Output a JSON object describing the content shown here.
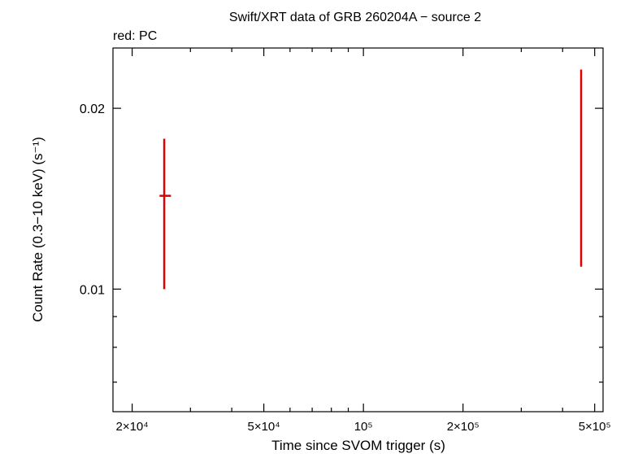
{
  "chart_data": {
    "type": "scatter",
    "title": "Swift/XRT data of GRB 260204A − source 2",
    "subtitle": "red: PC",
    "xlabel": "Time since SVOM trigger (s)",
    "ylabel": "Count Rate (0.3−10 keV) (s⁻¹)",
    "xscale": "log",
    "yscale": "log",
    "xlim": [
      17500,
      530000
    ],
    "ylim": [
      0.00625,
      0.0252
    ],
    "x_ticks": [
      {
        "value": 20000,
        "label": "2×10⁴"
      },
      {
        "value": 50000,
        "label": "5×10⁴"
      },
      {
        "value": 100000,
        "label": "10⁵"
      },
      {
        "value": 200000,
        "label": "2×10⁵"
      },
      {
        "value": 500000,
        "label": "5×10⁵"
      }
    ],
    "y_ticks": [
      {
        "value": 0.01,
        "label": "0.01"
      },
      {
        "value": 0.02,
        "label": "0.02"
      }
    ],
    "grid": false,
    "series": [
      {
        "name": "PC",
        "color": "#e00000",
        "points": [
          {
            "x": 25000,
            "y": 0.0143,
            "x_err": [
              24200,
              26200
            ],
            "y_err": [
              0.01,
              0.0178
            ]
          },
          {
            "x": 455000,
            "y": null,
            "x_err": [
              455000,
              455000
            ],
            "y_err": [
              0.0109,
              0.0232
            ]
          }
        ]
      }
    ]
  }
}
